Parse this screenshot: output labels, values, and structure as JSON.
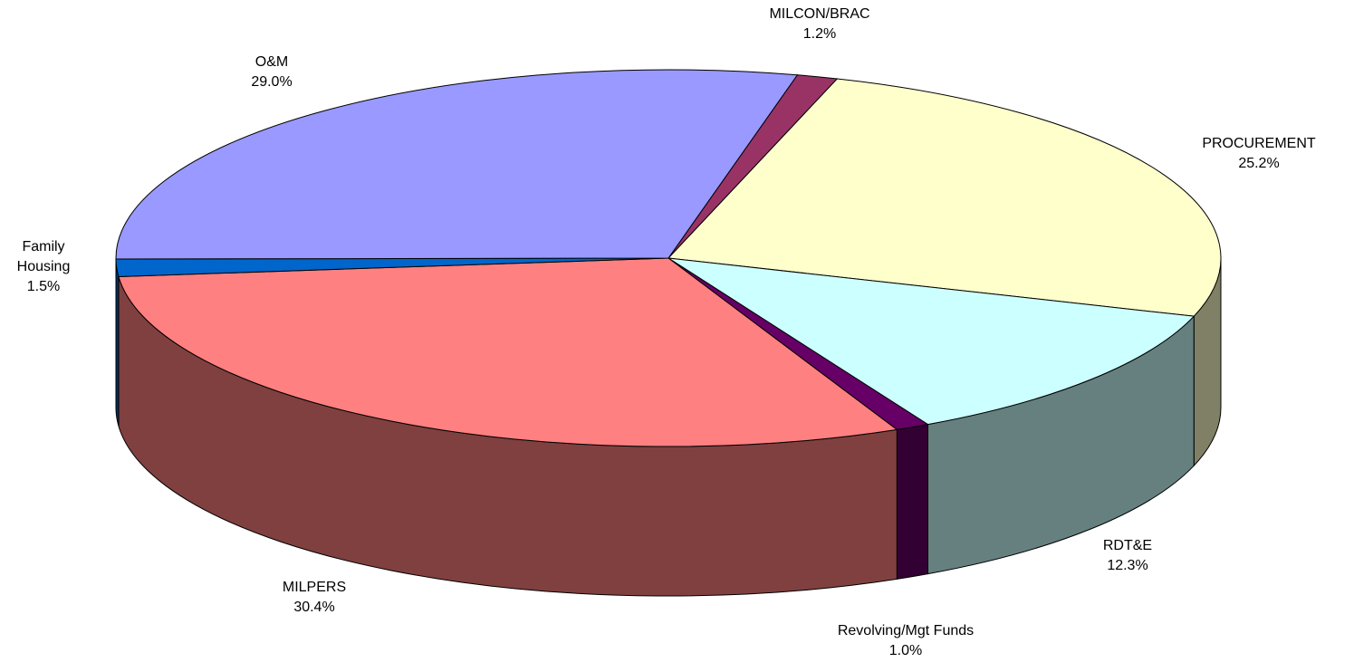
{
  "chart_data": {
    "type": "pie3d",
    "categories": [
      "MILCON/BRAC",
      "PROCUREMENT",
      "RDT&E",
      "Revolving/Mgt Funds",
      "MILPERS",
      "Family Housing",
      "O&M"
    ],
    "values": [
      1.2,
      25.2,
      12.3,
      1.0,
      30.4,
      1.5,
      29.0
    ],
    "value_labels": [
      "1.2%",
      "25.2%",
      "12.3%",
      "1.0%",
      "30.4%",
      "1.5%",
      "29.0%"
    ],
    "colors": [
      "#993366",
      "#FFFFCC",
      "#CCFFFF",
      "#660066",
      "#FF8080",
      "#0066CC",
      "#9999FF"
    ]
  }
}
